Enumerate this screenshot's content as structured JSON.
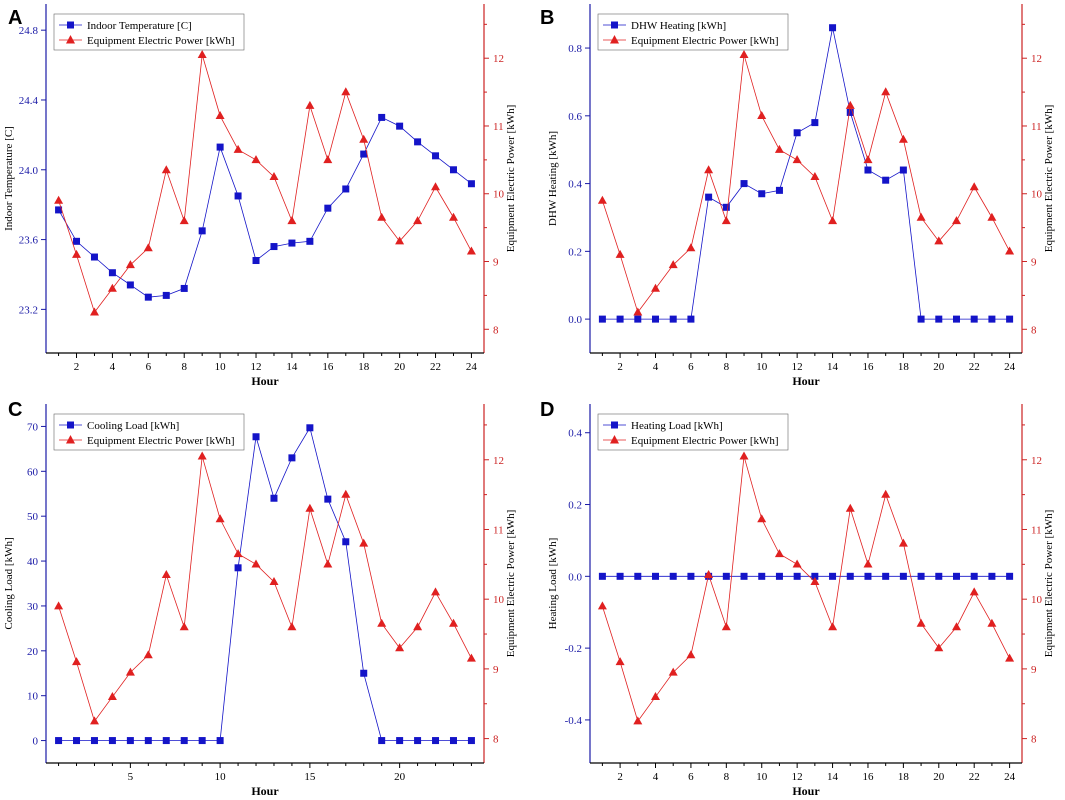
{
  "colors": {
    "blue": "#1414c8",
    "red": "#e02020",
    "blue_axis": "#1a1aa6",
    "red_axis": "#cc2222"
  },
  "chart_data": [
    {
      "type": "line",
      "panel_label": "A",
      "xlabel": "Hour",
      "ylabel_left": "Indoor Temperature [C]",
      "ylabel_right": "Equipment Electric Power [kWh]",
      "x": [
        1,
        2,
        3,
        4,
        5,
        6,
        7,
        8,
        9,
        10,
        11,
        12,
        13,
        14,
        15,
        16,
        17,
        18,
        19,
        20,
        21,
        22,
        23,
        24
      ],
      "xlim": [
        0.3,
        24.7
      ],
      "xticks": [
        2,
        4,
        6,
        8,
        10,
        12,
        14,
        16,
        18,
        20,
        22,
        24
      ],
      "ylim_left": [
        22.95,
        24.95
      ],
      "yticks_left": [
        23.2,
        23.6,
        24.0,
        24.4,
        24.8
      ],
      "ytick_labels_left": [
        "23.2",
        "23.6",
        "24.0",
        "24.4",
        "24.8"
      ],
      "ylim_right": [
        7.65,
        12.8
      ],
      "yticks_right": [
        8,
        9,
        10,
        11,
        12
      ],
      "series": [
        {
          "name": "Indoor Temperature [C]",
          "axis": "left",
          "marker": "square",
          "values": [
            23.77,
            23.59,
            23.5,
            23.41,
            23.34,
            23.27,
            23.28,
            23.32,
            23.65,
            24.13,
            23.85,
            23.48,
            23.56,
            23.58,
            23.59,
            23.78,
            23.89,
            24.09,
            24.3,
            24.25,
            24.16,
            24.08,
            24.0,
            23.92
          ]
        },
        {
          "name": "Equipment Electric Power [kWh]",
          "axis": "right",
          "marker": "triangle",
          "values": [
            9.9,
            9.1,
            8.25,
            8.6,
            8.95,
            9.2,
            10.35,
            9.6,
            12.05,
            11.15,
            10.65,
            10.5,
            10.25,
            9.6,
            11.3,
            10.5,
            11.5,
            10.8,
            9.65,
            9.3,
            9.6,
            10.1,
            9.65,
            9.15
          ]
        }
      ],
      "legend_position": "top-left"
    },
    {
      "type": "line",
      "panel_label": "B",
      "xlabel": "Hour",
      "ylabel_left": "DHW Heating [kWh]",
      "ylabel_right": "Equipment Electric Power [kWh]",
      "x": [
        1,
        2,
        3,
        4,
        5,
        6,
        7,
        8,
        9,
        10,
        11,
        12,
        13,
        14,
        15,
        16,
        17,
        18,
        19,
        20,
        21,
        22,
        23,
        24
      ],
      "xlim": [
        0.3,
        24.7
      ],
      "xticks": [
        2,
        4,
        6,
        8,
        10,
        12,
        14,
        16,
        18,
        20,
        22,
        24
      ],
      "ylim_left": [
        -0.1,
        0.93
      ],
      "yticks_left": [
        0.0,
        0.2,
        0.4,
        0.6,
        0.8
      ],
      "ytick_labels_left": [
        "0.0",
        "0.2",
        "0.4",
        "0.6",
        "0.8"
      ],
      "ylim_right": [
        7.65,
        12.8
      ],
      "yticks_right": [
        8,
        9,
        10,
        11,
        12
      ],
      "series": [
        {
          "name": "DHW Heating [kWh]",
          "axis": "left",
          "marker": "square",
          "values": [
            0,
            0,
            0,
            0,
            0,
            0,
            0.36,
            0.33,
            0.4,
            0.37,
            0.38,
            0.55,
            0.58,
            0.86,
            0.61,
            0.44,
            0.41,
            0.44,
            0,
            0,
            0,
            0,
            0,
            0
          ]
        },
        {
          "name": "Equipment Electric Power [kWh]",
          "axis": "right",
          "marker": "triangle",
          "values": [
            9.9,
            9.1,
            8.25,
            8.6,
            8.95,
            9.2,
            10.35,
            9.6,
            12.05,
            11.15,
            10.65,
            10.5,
            10.25,
            9.6,
            11.3,
            10.5,
            11.5,
            10.8,
            9.65,
            9.3,
            9.6,
            10.1,
            9.65,
            9.15
          ]
        }
      ],
      "legend_position": "top-left"
    },
    {
      "type": "line",
      "panel_label": "C",
      "xlabel": "Hour",
      "ylabel_left": "Cooling Load [kWh]",
      "ylabel_right": "Equipment Electric Power [kWh]",
      "x": [
        1,
        2,
        3,
        4,
        5,
        6,
        7,
        8,
        9,
        10,
        11,
        12,
        13,
        14,
        15,
        16,
        17,
        18,
        19,
        20,
        21,
        22,
        23,
        24
      ],
      "xlim": [
        0.3,
        24.7
      ],
      "xticks": [
        5,
        10,
        15,
        20
      ],
      "ylim_left": [
        -5,
        75
      ],
      "yticks_left": [
        0,
        10,
        20,
        30,
        40,
        50,
        60,
        70
      ],
      "ytick_labels_left": [
        "0",
        "10",
        "20",
        "30",
        "40",
        "50",
        "60",
        "70"
      ],
      "ylim_right": [
        7.65,
        12.8
      ],
      "yticks_right": [
        8,
        9,
        10,
        11,
        12
      ],
      "series": [
        {
          "name": "Cooling Load [kWh]",
          "axis": "left",
          "marker": "square",
          "values": [
            0,
            0,
            0,
            0,
            0,
            0,
            0,
            0,
            0,
            0,
            38.5,
            67.7,
            54,
            63,
            69.7,
            53.8,
            44.3,
            15,
            0,
            0,
            0,
            0,
            0,
            0
          ]
        },
        {
          "name": "Equipment Electric Power [kWh]",
          "axis": "right",
          "marker": "triangle",
          "values": [
            9.9,
            9.1,
            8.25,
            8.6,
            8.95,
            9.2,
            10.35,
            9.6,
            12.05,
            11.15,
            10.65,
            10.5,
            10.25,
            9.6,
            11.3,
            10.5,
            11.5,
            10.8,
            9.65,
            9.3,
            9.6,
            10.1,
            9.65,
            9.15
          ]
        }
      ],
      "legend_position": "top-left"
    },
    {
      "type": "line",
      "panel_label": "D",
      "xlabel": "Hour",
      "ylabel_left": "Heating Load [kWh]",
      "ylabel_right": "Equipment Electric Power [kWh]",
      "x": [
        1,
        2,
        3,
        4,
        5,
        6,
        7,
        8,
        9,
        10,
        11,
        12,
        13,
        14,
        15,
        16,
        17,
        18,
        19,
        20,
        21,
        22,
        23,
        24
      ],
      "xlim": [
        0.3,
        24.7
      ],
      "xticks": [
        2,
        4,
        6,
        8,
        10,
        12,
        14,
        16,
        18,
        20,
        22,
        24
      ],
      "ylim_left": [
        -0.52,
        0.48
      ],
      "yticks_left": [
        -0.4,
        -0.2,
        0.0,
        0.2,
        0.4
      ],
      "ytick_labels_left": [
        "-0.4",
        "-0.2",
        "0.0",
        "0.2",
        "0.4"
      ],
      "ylim_right": [
        7.65,
        12.8
      ],
      "yticks_right": [
        8,
        9,
        10,
        11,
        12
      ],
      "series": [
        {
          "name": "Heating Load [kWh]",
          "axis": "left",
          "marker": "square",
          "values": [
            0,
            0,
            0,
            0,
            0,
            0,
            0,
            0,
            0,
            0,
            0,
            0,
            0,
            0,
            0,
            0,
            0,
            0,
            0,
            0,
            0,
            0,
            0,
            0
          ]
        },
        {
          "name": "Equipment Electric Power [kWh]",
          "axis": "right",
          "marker": "triangle",
          "values": [
            9.9,
            9.1,
            8.25,
            8.6,
            8.95,
            9.2,
            10.35,
            9.6,
            12.05,
            11.15,
            10.65,
            10.5,
            10.25,
            9.6,
            11.3,
            10.5,
            11.5,
            10.8,
            9.65,
            9.3,
            9.6,
            10.1,
            9.65,
            9.15
          ]
        }
      ],
      "legend_position": "top-left"
    }
  ]
}
